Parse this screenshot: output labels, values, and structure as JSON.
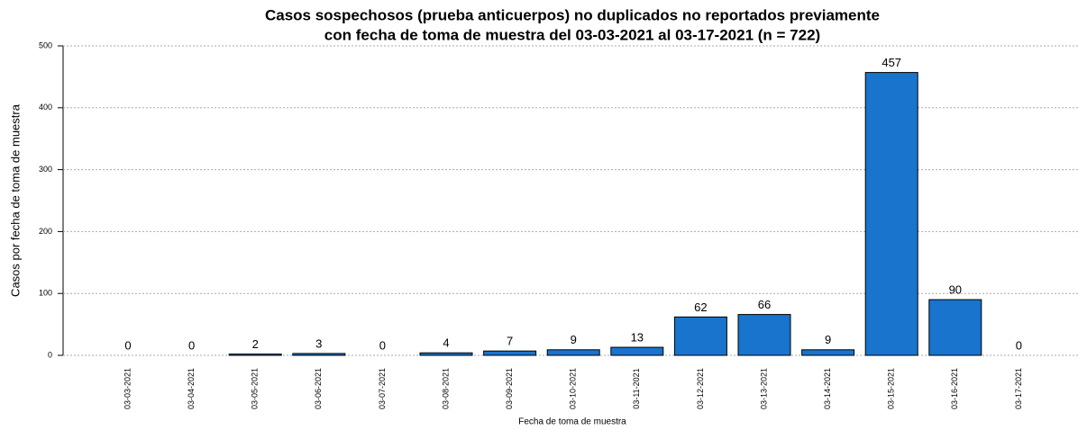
{
  "chart_data": {
    "type": "bar",
    "title": [
      "Casos sospechosos (prueba anticuerpos) no duplicados no reportados previamente",
      "con fecha de toma de muestra del 03-03-2021 al 03-17-2021 (n = 722)"
    ],
    "x_label": "Fecha de toma de muestra",
    "y_label": "Casos por fecha de toma de muestra",
    "categories": [
      "03-03-2021",
      "03-04-2021",
      "03-05-2021",
      "03-06-2021",
      "03-07-2021",
      "03-08-2021",
      "03-09-2021",
      "03-10-2021",
      "03-11-2021",
      "03-12-2021",
      "03-13-2021",
      "03-14-2021",
      "03-15-2021",
      "03-16-2021",
      "03-17-2021"
    ],
    "values": [
      0,
      0,
      2,
      3,
      0,
      4,
      7,
      9,
      13,
      62,
      66,
      9,
      457,
      90,
      0
    ],
    "color": "#1874cd",
    "ylim": [
      0,
      500
    ],
    "yticks": [
      0,
      100,
      200,
      300,
      400,
      500
    ],
    "grid": true
  }
}
